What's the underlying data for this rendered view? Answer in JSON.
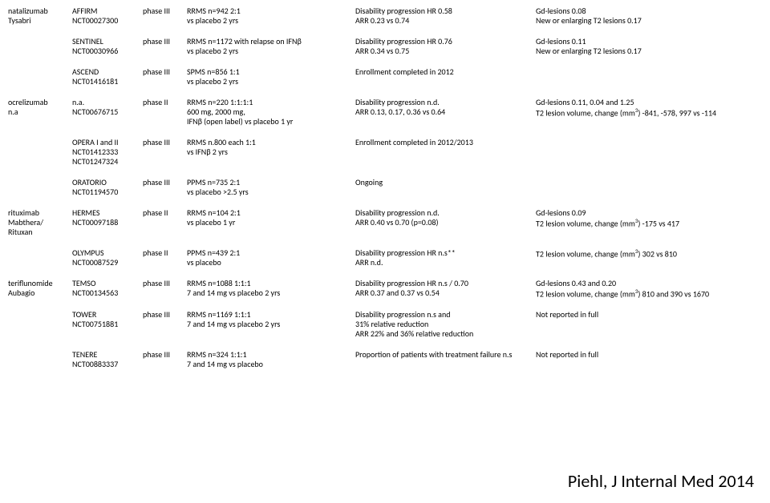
{
  "citation": "Piehl, J Internal Med 2014",
  "rows": [
    {
      "drug": [
        "natalizumab",
        "Tysabri"
      ],
      "trial": [
        "AFFIRM",
        "NCT00027300"
      ],
      "phase": [
        "phase III"
      ],
      "design": [
        "RRMS n=942 2:1",
        "vs placebo 2 yrs"
      ],
      "end": [
        "Disability progression HR 0.58",
        "ARR 0.23 vs 0.74"
      ],
      "mri": [
        "Gd-lesions 0.08",
        "New or enlarging T2 lesions 0.17"
      ]
    },
    {
      "drug": [],
      "trial": [
        "SENTINEL",
        "NCT00030966"
      ],
      "phase": [
        "phase III"
      ],
      "design": [
        "RRMS n=1172 with relapse on IFNβ",
        "vs placebo 2 yrs"
      ],
      "end": [
        "Disability progression HR 0.76",
        "ARR 0.34 vs 0.75"
      ],
      "mri": [
        "Gd-lesions 0.11",
        "New or enlarging T2 lesions 0.17"
      ]
    },
    {
      "drug": [],
      "trial": [
        "ASCEND",
        "NCT01416181"
      ],
      "phase": [
        "phase III"
      ],
      "design": [
        "SPMS n=856 1:1",
        "vs placebo 2 yrs"
      ],
      "end": [
        "Enrollment completed in 2012"
      ],
      "mri": []
    },
    {
      "drug": [
        "ocrelizumab",
        "n.a"
      ],
      "trial": [
        "n.a.",
        "NCT00676715"
      ],
      "phase": [
        "phase II"
      ],
      "design": [
        "RRMS n=220 1:1:1:1",
        "600 mg, 2000 mg,",
        "IFNβ (open label) vs placebo 1 yr"
      ],
      "end": [
        "Disability progression n.d.",
        "ARR 0.13, 0.17, 0.36 vs 0.64"
      ],
      "mri": [
        "Gd-lesions 0.11, 0.04 and 1.25",
        "T2 lesion volume, change (mm<sup class=\"sup\">3</sup>) -841, -578, 997 vs -114"
      ]
    },
    {
      "drug": [],
      "trial": [
        "OPERA I and II",
        "NCT01412333",
        "NCT01247324"
      ],
      "phase": [
        "phase III"
      ],
      "design": [
        "RRMS n.800 each 1:1",
        " vs IFNβ 2 yrs"
      ],
      "end": [
        "Enrollment completed in 2012/2013"
      ],
      "mri": []
    },
    {
      "drug": [],
      "trial": [
        "ORATORIO",
        "NCT01194570"
      ],
      "phase": [
        "phase III"
      ],
      "design": [
        "PPMS n=735 2:1",
        " vs placebo >2.5 yrs"
      ],
      "end": [
        "Ongoing"
      ],
      "mri": []
    },
    {
      "drug": [
        "rituximab",
        "Mabthera/",
        "Rituxan"
      ],
      "trial": [
        "HERMES",
        "NCT00097188"
      ],
      "phase": [
        "phase II"
      ],
      "design": [
        "RRMS n=104 2:1",
        "vs placebo 1 yr"
      ],
      "end": [
        "Disability progression n.d.",
        "ARR 0.40 vs 0.70 (p=0.08)"
      ],
      "mri": [
        "Gd-lesions 0.09",
        "T2 lesion volume, change (mm<sup class=\"sup\">3</sup>) -175 vs 417"
      ]
    },
    {
      "drug": [],
      "trial": [
        "OLYMPUS",
        "NCT00087529"
      ],
      "phase": [
        "phase II"
      ],
      "design": [
        "PPMS n=439 2:1",
        "vs placebo"
      ],
      "end": [
        "Disability progression  HR n.s**",
        "ARR n.d."
      ],
      "mri": [
        "T2 lesion volume, change (mm<sup class=\"sup\">3</sup>) 302 vs 810"
      ]
    },
    {
      "drug": [
        "teriflunomide",
        "Aubagio"
      ],
      "trial": [
        "TEMSO",
        "NCT00134563"
      ],
      "phase": [
        "phase III"
      ],
      "design": [
        "RRMS n=1088  1:1:1",
        "7 and 14 mg vs placebo 2 yrs"
      ],
      "end": [
        "Disability progression HR n.s / 0.70",
        "ARR 0.37 and 0.37 vs 0.54"
      ],
      "mri": [
        "Gd-lesions 0.43 and 0.20",
        "T2 lesion volume, change (mm<sup class=\"sup\">3</sup>) 810 and 390 vs 1670"
      ]
    },
    {
      "drug": [],
      "trial": [
        "TOWER",
        "NCT00751881"
      ],
      "phase": [
        "phase III"
      ],
      "design": [
        "RRMS n=1169  1:1:1",
        "7 and 14 mg vs placebo 2 yrs"
      ],
      "end": [
        "Disability progression n.s and",
        "31% relative reduction",
        "ARR 22% and 36% relative reduction"
      ],
      "mri": [
        "Not reported in full"
      ]
    },
    {
      "drug": [],
      "trial": [
        "TENERE",
        "NCT00883337"
      ],
      "phase": [
        "phase III"
      ],
      "design": [
        "RRMS n=324 1:1:1",
        "7 and 14 mg vs placebo"
      ],
      "end": [
        "Proportion of patients with treatment failure n.s"
      ],
      "mri": [
        "Not reported in full"
      ]
    }
  ]
}
